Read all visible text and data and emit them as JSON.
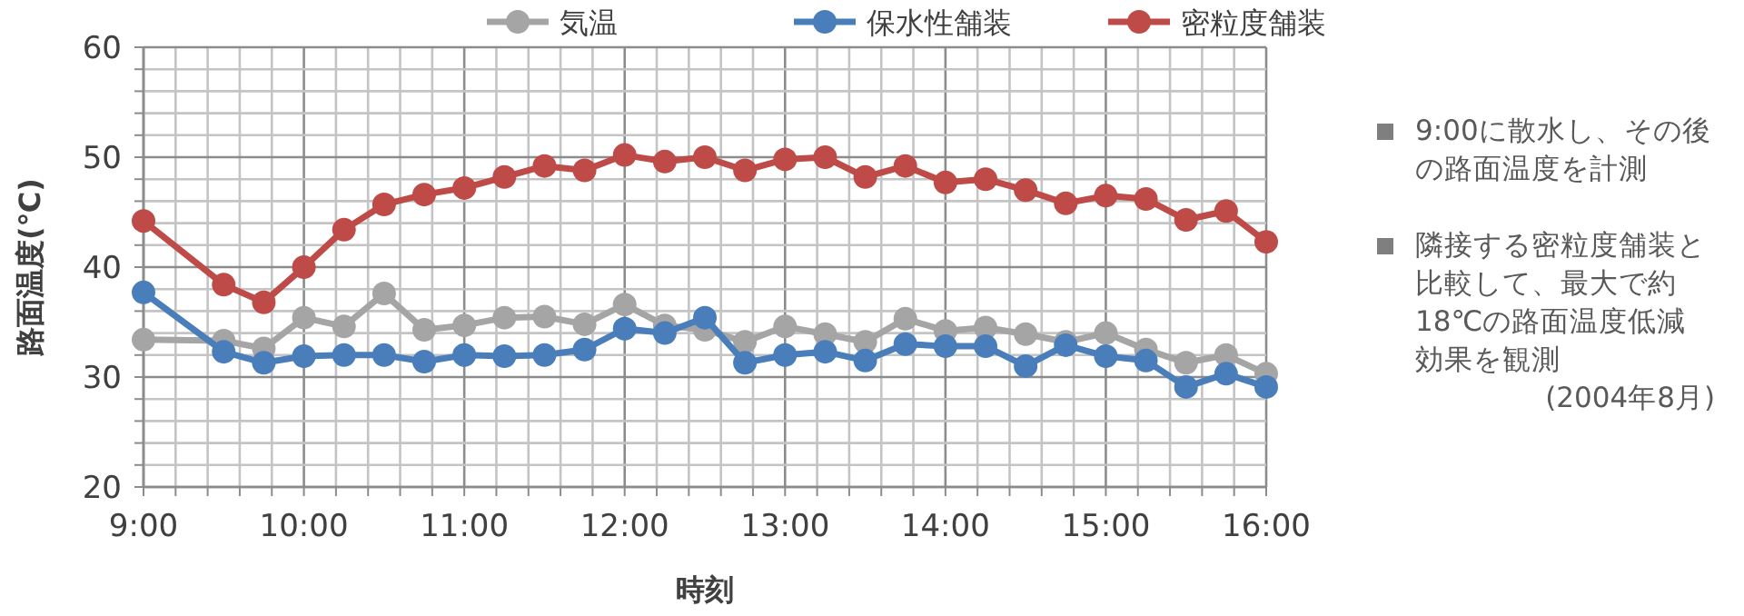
{
  "chart_data": {
    "type": "line",
    "xlabel": "時刻",
    "ylabel": "路面温度(℃)",
    "x": [
      9,
      9.5,
      9.75,
      10,
      10.25,
      10.5,
      10.75,
      11,
      11.25,
      11.5,
      11.75,
      12,
      12.25,
      12.5,
      12.75,
      13,
      13.25,
      13.5,
      13.75,
      14,
      14.25,
      14.5,
      14.75,
      15,
      15.25,
      15.5,
      15.75,
      16
    ],
    "series": [
      {
        "name": "気温",
        "color": "#a5a5a5",
        "values": [
          33.4,
          33.3,
          32.6,
          35.4,
          34.6,
          37.6,
          34.3,
          34.7,
          35.4,
          35.5,
          34.8,
          36.6,
          34.7,
          34.3,
          33.2,
          34.6,
          33.9,
          33.2,
          35.3,
          34.2,
          34.5,
          33.9,
          33.2,
          34.0,
          32.5,
          31.3,
          32.0,
          30.3
        ]
      },
      {
        "name": "保水性舗装",
        "color": "#4a7ebb",
        "values": [
          37.7,
          32.3,
          31.3,
          31.9,
          32.0,
          32.0,
          31.4,
          32.0,
          31.9,
          32.0,
          32.5,
          34.4,
          34.0,
          35.4,
          31.3,
          32.0,
          32.3,
          31.5,
          33.0,
          32.8,
          32.8,
          31.0,
          32.9,
          31.9,
          31.5,
          29.1,
          30.3,
          29.1
        ]
      },
      {
        "name": "密粒度舗装",
        "color": "#be4b48",
        "values": [
          44.2,
          38.4,
          36.8,
          40.0,
          43.4,
          45.7,
          46.6,
          47.2,
          48.2,
          49.2,
          48.8,
          50.2,
          49.6,
          50.0,
          48.8,
          49.8,
          50.0,
          48.2,
          49.2,
          47.7,
          48.0,
          47.0,
          45.8,
          46.5,
          46.2,
          44.3,
          45.1,
          42.3
        ]
      }
    ],
    "xlim": [
      9,
      16
    ],
    "xticks": [
      {
        "value": 9,
        "label": "9:00"
      },
      {
        "value": 9.2,
        "label": null
      },
      {
        "value": 9.4,
        "label": null
      },
      {
        "value": 9.6,
        "label": null
      },
      {
        "value": 9.8,
        "label": null
      },
      {
        "value": 10,
        "label": "10:00"
      },
      {
        "value": 10.2,
        "label": null
      },
      {
        "value": 10.4,
        "label": null
      },
      {
        "value": 10.6,
        "label": null
      },
      {
        "value": 10.8,
        "label": null
      },
      {
        "value": 11,
        "label": "11:00"
      },
      {
        "value": 11.2,
        "label": null
      },
      {
        "value": 11.4,
        "label": null
      },
      {
        "value": 11.6,
        "label": null
      },
      {
        "value": 11.8,
        "label": null
      },
      {
        "value": 12,
        "label": "12:00"
      },
      {
        "value": 12.2,
        "label": null
      },
      {
        "value": 12.4,
        "label": null
      },
      {
        "value": 12.6,
        "label": null
      },
      {
        "value": 12.8,
        "label": null
      },
      {
        "value": 13,
        "label": "13:00"
      },
      {
        "value": 13.2,
        "label": null
      },
      {
        "value": 13.4,
        "label": null
      },
      {
        "value": 13.6,
        "label": null
      },
      {
        "value": 13.8,
        "label": null
      },
      {
        "value": 14,
        "label": "14:00"
      },
      {
        "value": 14.2,
        "label": null
      },
      {
        "value": 14.4,
        "label": null
      },
      {
        "value": 14.6,
        "label": null
      },
      {
        "value": 14.8,
        "label": null
      },
      {
        "value": 15,
        "label": "15:00"
      },
      {
        "value": 15.2,
        "label": null
      },
      {
        "value": 15.4,
        "label": null
      },
      {
        "value": 15.6,
        "label": null
      },
      {
        "value": 15.8,
        "label": null
      },
      {
        "value": 16,
        "label": "16:00"
      }
    ],
    "ylim": [
      20,
      60
    ],
    "yticks": [
      20,
      {
        "value": 22,
        "label": null
      },
      {
        "value": 24,
        "label": null
      },
      {
        "value": 26,
        "label": null
      },
      {
        "value": 28,
        "label": null
      },
      30,
      {
        "value": 32,
        "label": null
      },
      {
        "value": 34,
        "label": null
      },
      {
        "value": 36,
        "label": null
      },
      {
        "value": 38,
        "label": null
      },
      40,
      {
        "value": 42,
        "label": null
      },
      {
        "value": 44,
        "label": null
      },
      {
        "value": 46,
        "label": null
      },
      {
        "value": 48,
        "label": null
      },
      50,
      {
        "value": 52,
        "label": null
      },
      {
        "value": 54,
        "label": null
      },
      {
        "value": 56,
        "label": null
      },
      {
        "value": 58,
        "label": null
      },
      60
    ],
    "grid": true,
    "legend": "top",
    "marker": "circle",
    "line_style": "solid",
    "annotations": [
      "9:00に散水し、その後の路面温度を計測",
      "隣接する密粒度舗装と比較して、最大で約18℃の路面温度低減効果を観測",
      "(2004年8月)"
    ]
  }
}
